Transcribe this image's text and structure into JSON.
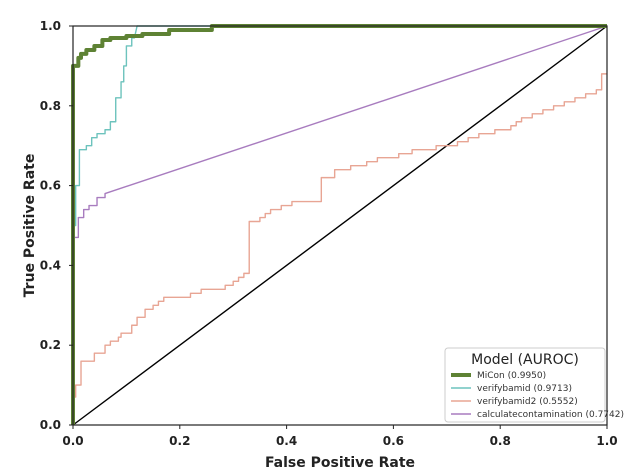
{
  "chart_data": {
    "type": "line",
    "title": "",
    "xlabel": "False Positive Rate",
    "ylabel": "True Positive Rate",
    "xlim": [
      0,
      1
    ],
    "ylim": [
      0,
      1
    ],
    "xticks": [
      "0.0",
      "0.2",
      "0.4",
      "0.6",
      "0.8",
      "1.0"
    ],
    "yticks": [
      "0.0",
      "0.2",
      "0.4",
      "0.6",
      "0.8",
      "1.0"
    ],
    "grid": false,
    "legend_title": "Model (AUROC)",
    "legend_position": "lower-right",
    "series": [
      {
        "name": "MiCon (0.9950)",
        "color": "#5e8234",
        "points": [
          [
            0,
            0
          ],
          [
            0,
            0.89
          ],
          [
            0,
            0.9
          ],
          [
            0.01,
            0.9
          ],
          [
            0.01,
            0.92
          ],
          [
            0.015,
            0.92
          ],
          [
            0.015,
            0.93
          ],
          [
            0.025,
            0.93
          ],
          [
            0.025,
            0.94
          ],
          [
            0.04,
            0.94
          ],
          [
            0.04,
            0.95
          ],
          [
            0.055,
            0.95
          ],
          [
            0.055,
            0.965
          ],
          [
            0.07,
            0.965
          ],
          [
            0.07,
            0.97
          ],
          [
            0.1,
            0.97
          ],
          [
            0.1,
            0.975
          ],
          [
            0.13,
            0.975
          ],
          [
            0.13,
            0.98
          ],
          [
            0.18,
            0.98
          ],
          [
            0.18,
            0.99
          ],
          [
            0.26,
            0.99
          ],
          [
            0.26,
            1.0
          ],
          [
            1.0,
            1.0
          ]
        ]
      },
      {
        "name": "verifybamid (0.9713)",
        "color": "#6dc3bd",
        "points": [
          [
            0,
            0
          ],
          [
            0,
            0.5
          ],
          [
            0.005,
            0.5
          ],
          [
            0.005,
            0.6
          ],
          [
            0.012,
            0.6
          ],
          [
            0.012,
            0.69
          ],
          [
            0.025,
            0.69
          ],
          [
            0.025,
            0.7
          ],
          [
            0.035,
            0.7
          ],
          [
            0.035,
            0.72
          ],
          [
            0.045,
            0.72
          ],
          [
            0.045,
            0.73
          ],
          [
            0.06,
            0.73
          ],
          [
            0.06,
            0.74
          ],
          [
            0.07,
            0.74
          ],
          [
            0.07,
            0.76
          ],
          [
            0.08,
            0.76
          ],
          [
            0.08,
            0.82
          ],
          [
            0.09,
            0.82
          ],
          [
            0.09,
            0.86
          ],
          [
            0.095,
            0.86
          ],
          [
            0.095,
            0.9
          ],
          [
            0.1,
            0.9
          ],
          [
            0.1,
            0.95
          ],
          [
            0.11,
            0.95
          ],
          [
            0.11,
            0.97
          ],
          [
            0.115,
            0.97
          ],
          [
            0.12,
            1.0
          ],
          [
            1.0,
            1.0
          ]
        ]
      },
      {
        "name": "verifybamid2 (0.5552)",
        "color": "#e8a594",
        "points": [
          [
            0,
            0
          ],
          [
            0,
            0.07
          ],
          [
            0.005,
            0.07
          ],
          [
            0.005,
            0.1
          ],
          [
            0.015,
            0.1
          ],
          [
            0.015,
            0.16
          ],
          [
            0.04,
            0.16
          ],
          [
            0.04,
            0.18
          ],
          [
            0.06,
            0.18
          ],
          [
            0.06,
            0.2
          ],
          [
            0.07,
            0.2
          ],
          [
            0.07,
            0.21
          ],
          [
            0.085,
            0.21
          ],
          [
            0.085,
            0.22
          ],
          [
            0.09,
            0.22
          ],
          [
            0.09,
            0.23
          ],
          [
            0.11,
            0.23
          ],
          [
            0.11,
            0.25
          ],
          [
            0.12,
            0.25
          ],
          [
            0.12,
            0.27
          ],
          [
            0.135,
            0.27
          ],
          [
            0.135,
            0.29
          ],
          [
            0.15,
            0.29
          ],
          [
            0.15,
            0.3
          ],
          [
            0.16,
            0.3
          ],
          [
            0.16,
            0.31
          ],
          [
            0.17,
            0.31
          ],
          [
            0.17,
            0.32
          ],
          [
            0.22,
            0.32
          ],
          [
            0.22,
            0.33
          ],
          [
            0.24,
            0.33
          ],
          [
            0.24,
            0.34
          ],
          [
            0.285,
            0.34
          ],
          [
            0.285,
            0.35
          ],
          [
            0.3,
            0.35
          ],
          [
            0.3,
            0.36
          ],
          [
            0.31,
            0.36
          ],
          [
            0.31,
            0.37
          ],
          [
            0.32,
            0.37
          ],
          [
            0.32,
            0.38
          ],
          [
            0.33,
            0.38
          ],
          [
            0.33,
            0.51
          ],
          [
            0.35,
            0.51
          ],
          [
            0.35,
            0.52
          ],
          [
            0.36,
            0.52
          ],
          [
            0.36,
            0.53
          ],
          [
            0.37,
            0.53
          ],
          [
            0.37,
            0.54
          ],
          [
            0.39,
            0.54
          ],
          [
            0.39,
            0.55
          ],
          [
            0.41,
            0.55
          ],
          [
            0.41,
            0.56
          ],
          [
            0.465,
            0.56
          ],
          [
            0.465,
            0.62
          ],
          [
            0.49,
            0.62
          ],
          [
            0.49,
            0.64
          ],
          [
            0.52,
            0.64
          ],
          [
            0.52,
            0.65
          ],
          [
            0.55,
            0.65
          ],
          [
            0.55,
            0.66
          ],
          [
            0.57,
            0.66
          ],
          [
            0.57,
            0.67
          ],
          [
            0.61,
            0.67
          ],
          [
            0.61,
            0.68
          ],
          [
            0.635,
            0.68
          ],
          [
            0.635,
            0.69
          ],
          [
            0.68,
            0.69
          ],
          [
            0.68,
            0.7
          ],
          [
            0.72,
            0.7
          ],
          [
            0.72,
            0.71
          ],
          [
            0.74,
            0.71
          ],
          [
            0.74,
            0.72
          ],
          [
            0.76,
            0.72
          ],
          [
            0.76,
            0.73
          ],
          [
            0.79,
            0.73
          ],
          [
            0.79,
            0.74
          ],
          [
            0.82,
            0.74
          ],
          [
            0.82,
            0.75
          ],
          [
            0.83,
            0.75
          ],
          [
            0.83,
            0.76
          ],
          [
            0.84,
            0.76
          ],
          [
            0.84,
            0.77
          ],
          [
            0.86,
            0.77
          ],
          [
            0.86,
            0.78
          ],
          [
            0.88,
            0.78
          ],
          [
            0.88,
            0.79
          ],
          [
            0.9,
            0.79
          ],
          [
            0.9,
            0.8
          ],
          [
            0.92,
            0.8
          ],
          [
            0.92,
            0.81
          ],
          [
            0.94,
            0.81
          ],
          [
            0.94,
            0.82
          ],
          [
            0.96,
            0.82
          ],
          [
            0.96,
            0.83
          ],
          [
            0.98,
            0.83
          ],
          [
            0.98,
            0.84
          ],
          [
            0.99,
            0.84
          ],
          [
            0.99,
            0.88
          ],
          [
            1.0,
            0.88
          ]
        ]
      },
      {
        "name": "calculatecontamination (0.7742)",
        "color": "#a87cbf",
        "points": [
          [
            0,
            0
          ],
          [
            0,
            0.47
          ],
          [
            0.01,
            0.47
          ],
          [
            0.01,
            0.52
          ],
          [
            0.02,
            0.52
          ],
          [
            0.02,
            0.54
          ],
          [
            0.03,
            0.54
          ],
          [
            0.03,
            0.55
          ],
          [
            0.045,
            0.55
          ],
          [
            0.045,
            0.57
          ],
          [
            0.06,
            0.57
          ],
          [
            0.06,
            0.58
          ],
          [
            1.0,
            1.0
          ]
        ]
      },
      {
        "name": "",
        "color": "#000000",
        "points": [
          [
            0,
            0
          ],
          [
            1,
            1
          ]
        ]
      }
    ]
  }
}
